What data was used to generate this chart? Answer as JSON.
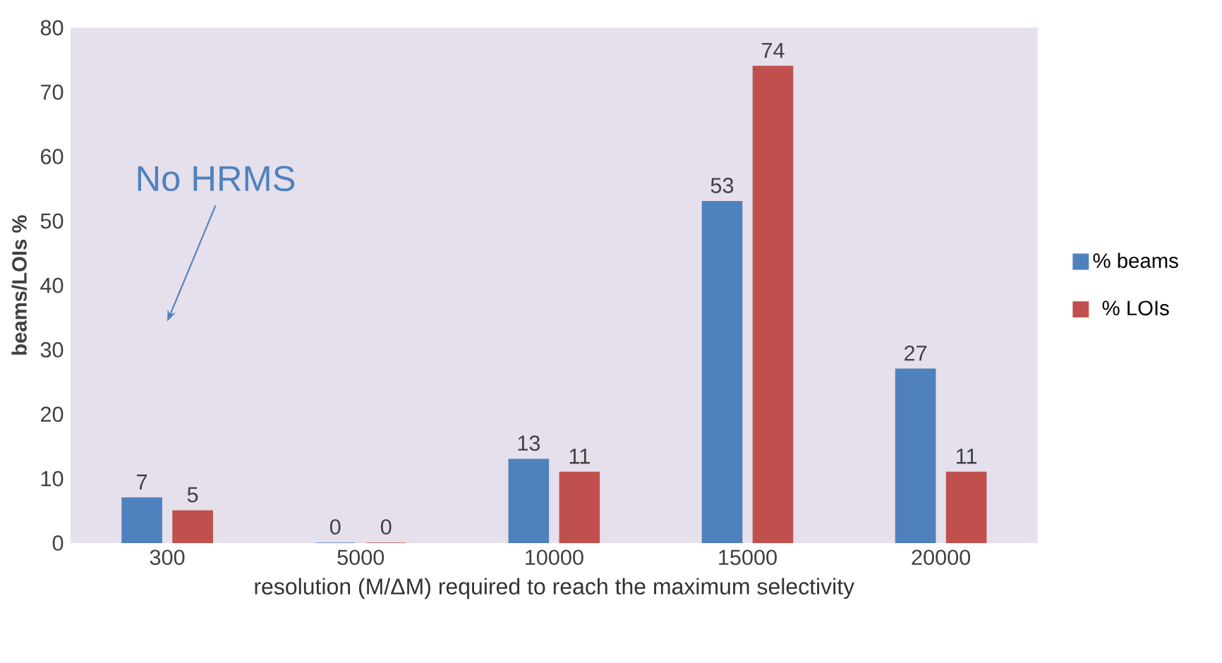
{
  "chart_data": {
    "type": "bar",
    "xlabel": "resolution (M/ΔM) required to reach the maximum selectivity",
    "ylabel": "beams/LOIs %",
    "categories": [
      "300",
      "5000",
      "10000",
      "15000",
      "20000"
    ],
    "series": [
      {
        "name": "% beams",
        "color": "#4f81bd",
        "values": [
          7,
          0,
          13,
          53,
          27
        ]
      },
      {
        "name": "% LOIs",
        "color": "#c0504d",
        "values": [
          5,
          0,
          11,
          74,
          11
        ]
      }
    ],
    "ylim": [
      0,
      80
    ],
    "yticks": [
      0,
      10,
      20,
      30,
      40,
      50,
      60,
      70,
      80
    ],
    "data_labels": true,
    "legend": "right",
    "annotations": [
      "No HRMS"
    ]
  }
}
